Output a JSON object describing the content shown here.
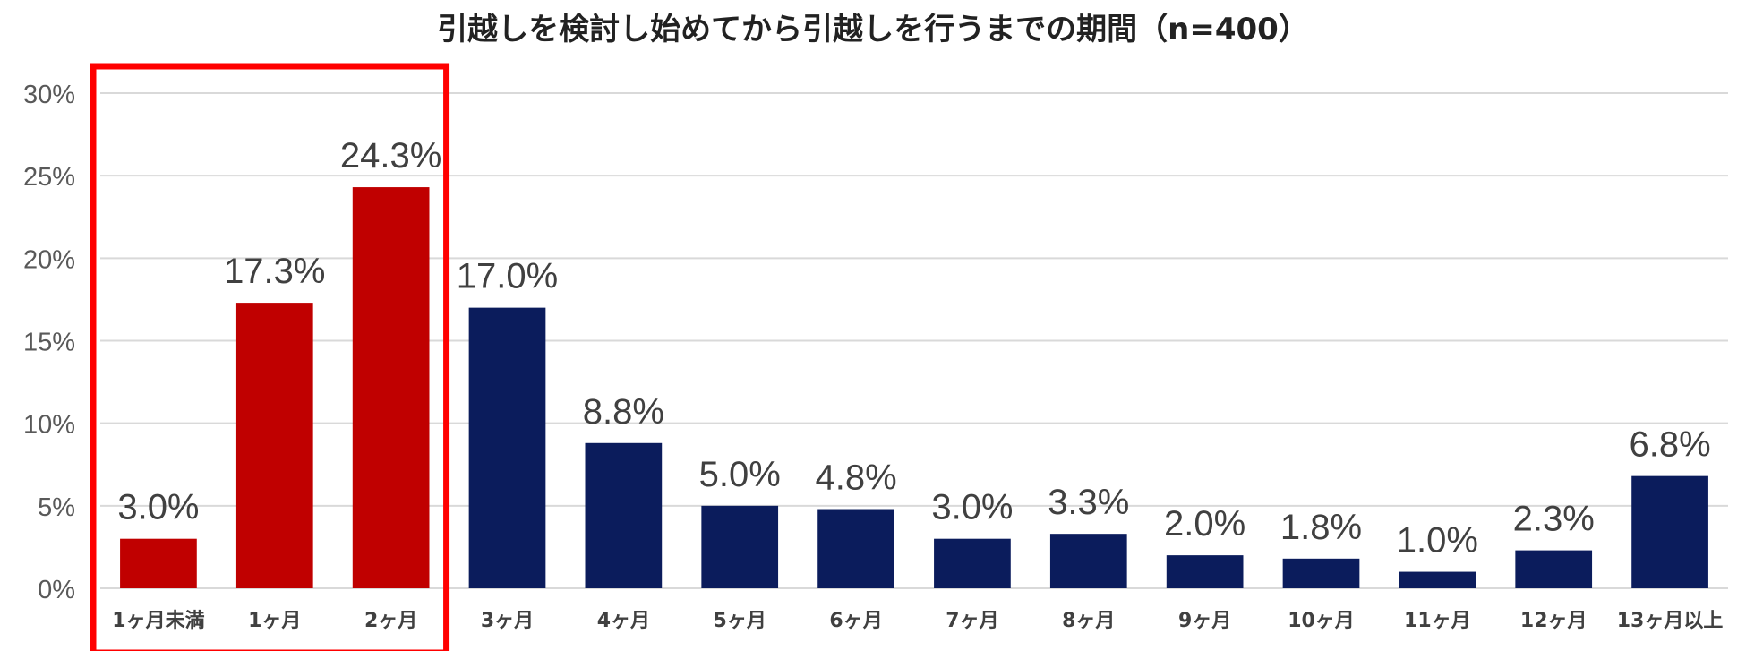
{
  "chart_data": {
    "type": "bar",
    "title": "引越しを検討し始めてから引越しを行うまでの期間（n=400）",
    "xlabel": "",
    "ylabel": "",
    "categories": [
      "1ヶ月未満",
      "1ヶ月",
      "2ヶ月",
      "3ヶ月",
      "4ヶ月",
      "5ヶ月",
      "6ヶ月",
      "7ヶ月",
      "8ヶ月",
      "9ヶ月",
      "10ヶ月",
      "11ヶ月",
      "12ヶ月",
      "13ヶ月以上"
    ],
    "values": [
      3.0,
      17.3,
      24.3,
      17.0,
      8.8,
      5.0,
      4.8,
      3.0,
      3.3,
      2.0,
      1.8,
      1.0,
      2.3,
      6.8
    ],
    "value_labels": [
      "3.0%",
      "17.3%",
      "24.3%",
      "17.0%",
      "8.8%",
      "5.0%",
      "4.8%",
      "3.0%",
      "3.3%",
      "2.0%",
      "1.8%",
      "1.0%",
      "2.3%",
      "6.8%"
    ],
    "ylim": [
      0,
      30
    ],
    "yticks": [
      0,
      5,
      10,
      15,
      20,
      25,
      30
    ],
    "ytick_labels": [
      "0%",
      "5%",
      "10%",
      "15%",
      "20%",
      "25%",
      "30%"
    ],
    "grid": true,
    "legend": "none",
    "highlighted_categories": [
      "1ヶ月未満",
      "1ヶ月",
      "2ヶ月"
    ],
    "colors": {
      "highlight": "#c00000",
      "default": "#0b1c5c",
      "highlight_box": "#ff0000",
      "grid": "#d9d9d9"
    }
  }
}
